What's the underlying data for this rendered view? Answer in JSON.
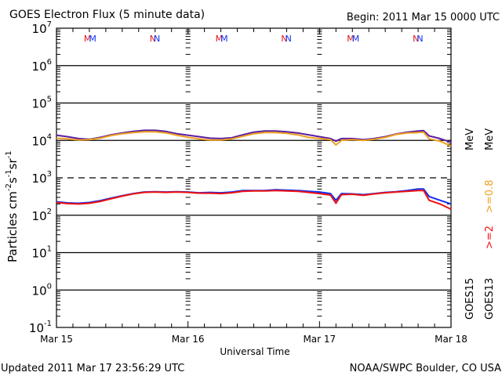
{
  "chart_data": {
    "type": "line",
    "title": "GOES Electron Flux (5 minute data)",
    "begin_label": "Begin: 2011 Mar 15 0000 UTC",
    "ylabel": "Particles cm",
    "ylabel_parts": [
      "Particles cm",
      "-2",
      "s",
      "-1",
      "sr",
      "-1"
    ],
    "xlabel": "Universal Time",
    "yscale": "log",
    "ylim_exp": [
      -1,
      7
    ],
    "y_ticks": [
      {
        "base": "10",
        "exp": "7",
        "value_exp": 7
      },
      {
        "base": "10",
        "exp": "6",
        "value_exp": 6
      },
      {
        "base": "10",
        "exp": "5",
        "value_exp": 5
      },
      {
        "base": "10",
        "exp": "4",
        "value_exp": 4
      },
      {
        "base": "10",
        "exp": "3",
        "value_exp": 3
      },
      {
        "base": "10",
        "exp": "2",
        "value_exp": 2
      },
      {
        "base": "10",
        "exp": "1",
        "value_exp": 1
      },
      {
        "base": "10",
        "exp": "0",
        "value_exp": 0
      },
      {
        "base": "10",
        "exp": "-1",
        "value_exp": -1
      }
    ],
    "xlim_hours": [
      0,
      72
    ],
    "x_ticks": [
      {
        "label": "Mar 15",
        "hour": 0
      },
      {
        "label": "Mar 16",
        "hour": 24
      },
      {
        "label": "Mar 17",
        "hour": 48
      },
      {
        "label": "Mar 18",
        "hour": 72
      }
    ],
    "threshold_exp": 3,
    "markers": [
      {
        "label": "MM",
        "hour": 6
      },
      {
        "label": "NN",
        "hour": 18
      },
      {
        "label": "MM",
        "hour": 30
      },
      {
        "label": "NN",
        "hour": 42
      },
      {
        "label": "MM",
        "hour": 54
      },
      {
        "label": "NN",
        "hour": 66
      }
    ],
    "x_hours": [
      0,
      2,
      4,
      6,
      8,
      10,
      12,
      14,
      16,
      18,
      20,
      22,
      24,
      26,
      28,
      30,
      32,
      34,
      36,
      38,
      40,
      42,
      44,
      46,
      48,
      50,
      51,
      52,
      54,
      56,
      58,
      60,
      62,
      64,
      66,
      67,
      68,
      70,
      72
    ],
    "series": [
      {
        "name": "GOES15 >=0.8 MeV",
        "color": "#5a1ea0",
        "log10_values": [
          4.14,
          4.1,
          4.05,
          4.03,
          4.08,
          4.15,
          4.2,
          4.24,
          4.27,
          4.27,
          4.24,
          4.18,
          4.14,
          4.1,
          4.06,
          4.05,
          4.07,
          4.15,
          4.22,
          4.25,
          4.25,
          4.23,
          4.2,
          4.15,
          4.1,
          4.05,
          3.98,
          4.05,
          4.05,
          4.02,
          4.05,
          4.1,
          4.17,
          4.22,
          4.25,
          4.26,
          4.12,
          4.05,
          3.95
        ]
      },
      {
        "name": "GOES13 >=0.8 MeV",
        "color": "#f0a020",
        "log10_values": [
          4.06,
          4.04,
          4.01,
          4.02,
          4.06,
          4.13,
          4.18,
          4.21,
          4.23,
          4.23,
          4.2,
          4.14,
          4.08,
          4.04,
          4.01,
          4.01,
          4.04,
          4.11,
          4.18,
          4.21,
          4.21,
          4.19,
          4.15,
          4.08,
          4.05,
          4.02,
          3.88,
          4.0,
          4.02,
          4.0,
          4.03,
          4.08,
          4.16,
          4.2,
          4.21,
          4.22,
          4.04,
          3.98,
          3.85
        ]
      },
      {
        "name": "GOES15 >=2 MeV",
        "color": "#1030f0",
        "log10_values": [
          2.36,
          2.33,
          2.32,
          2.34,
          2.39,
          2.46,
          2.52,
          2.58,
          2.62,
          2.63,
          2.62,
          2.63,
          2.62,
          2.6,
          2.61,
          2.6,
          2.62,
          2.66,
          2.66,
          2.66,
          2.68,
          2.67,
          2.66,
          2.64,
          2.62,
          2.58,
          2.4,
          2.58,
          2.57,
          2.55,
          2.58,
          2.61,
          2.63,
          2.66,
          2.7,
          2.7,
          2.5,
          2.4,
          2.3
        ]
      },
      {
        "name": "GOES13 >=2 MeV",
        "color": "#f01010",
        "log10_values": [
          2.34,
          2.31,
          2.3,
          2.32,
          2.37,
          2.44,
          2.51,
          2.57,
          2.61,
          2.62,
          2.61,
          2.62,
          2.61,
          2.59,
          2.59,
          2.58,
          2.6,
          2.64,
          2.65,
          2.65,
          2.66,
          2.65,
          2.64,
          2.61,
          2.58,
          2.54,
          2.32,
          2.55,
          2.56,
          2.53,
          2.57,
          2.6,
          2.62,
          2.64,
          2.66,
          2.66,
          2.4,
          2.3,
          2.16
        ]
      }
    ],
    "legend": {
      "placement": "right",
      "energy_labels": [
        {
          "text": ">=2",
          "unit": "MeV",
          "color": "#f01010"
        },
        {
          "text": ">=0.8",
          "unit": "MeV",
          "color": "#f0a020"
        }
      ],
      "satellites": [
        "GOES15",
        "GOES13"
      ]
    },
    "grid": "horizontal decades"
  },
  "footer": {
    "updated": "Updated 2011 Mar 17 23:56:29 UTC",
    "credit": "NOAA/SWPC Boulder, CO USA"
  },
  "colors": {
    "red": "#e01010",
    "blue": "#1030f0"
  }
}
